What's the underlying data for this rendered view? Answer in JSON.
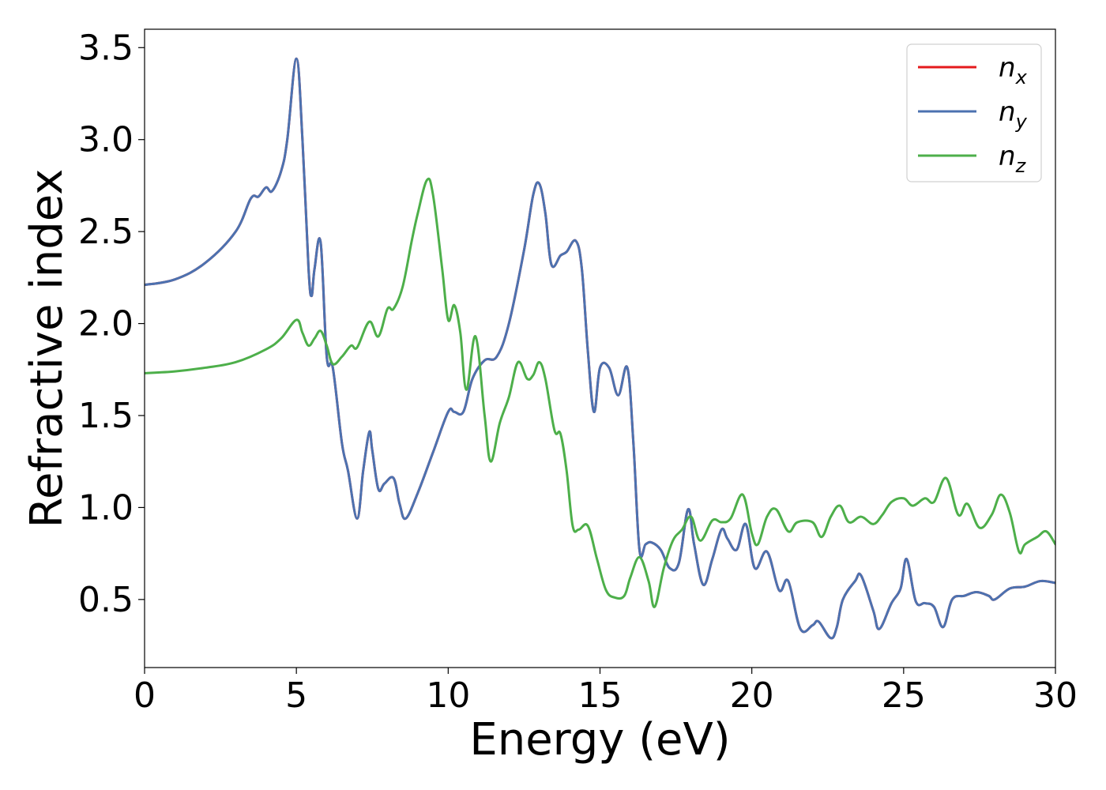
{
  "chart_data": {
    "type": "line",
    "xlabel": "Energy (eV)",
    "ylabel": "Refractive index",
    "xlim": [
      0,
      30
    ],
    "ylim": [
      0.13,
      3.6
    ],
    "xticks": [
      0,
      5,
      10,
      15,
      20,
      25,
      30
    ],
    "yticks": [
      0.5,
      1.0,
      1.5,
      2.0,
      2.5,
      3.0,
      3.5
    ],
    "grid": false,
    "legend_position": "top-right",
    "series": [
      {
        "name": "n_x",
        "label_base": "n",
        "label_sub": "x",
        "color": "#e41a1c",
        "x": [
          0,
          1,
          2,
          3,
          3.5,
          3.75,
          4,
          4.2,
          4.5,
          4.7,
          5.0,
          5.2,
          5.4,
          5.5,
          5.6,
          5.8,
          6.0,
          6.2,
          6.5,
          6.7,
          7.0,
          7.2,
          7.4,
          7.5,
          7.7,
          7.9,
          8.2,
          8.4,
          8.6,
          9.0,
          9.5,
          10.0,
          10.2,
          10.5,
          10.8,
          11.2,
          11.6,
          12.0,
          12.5,
          12.8,
          13.0,
          13.2,
          13.4,
          13.7,
          13.9,
          14.2,
          14.4,
          14.6,
          14.8,
          15.0,
          15.3,
          15.6,
          15.9,
          16.1,
          16.3,
          16.5,
          16.7,
          17.0,
          17.3,
          17.6,
          17.9,
          18.1,
          18.4,
          18.7,
          19.0,
          19.2,
          19.5,
          19.8,
          20.1,
          20.5,
          20.9,
          21.2,
          21.6,
          22.0,
          22.2,
          22.6,
          22.8,
          23.0,
          23.4,
          23.6,
          24.0,
          24.2,
          24.6,
          24.9,
          25.1,
          25.4,
          25.7,
          26.0,
          26.3,
          26.6,
          27.0,
          27.4,
          27.8,
          28.0,
          28.5,
          29.0,
          29.5,
          30.0
        ],
        "y": [
          2.21,
          2.24,
          2.33,
          2.5,
          2.68,
          2.69,
          2.74,
          2.72,
          2.83,
          3.0,
          3.44,
          3.0,
          2.3,
          2.15,
          2.3,
          2.44,
          1.82,
          1.76,
          1.35,
          1.2,
          0.94,
          1.2,
          1.41,
          1.31,
          1.1,
          1.13,
          1.16,
          1.02,
          0.94,
          1.08,
          1.3,
          1.52,
          1.52,
          1.52,
          1.7,
          1.8,
          1.82,
          2.0,
          2.4,
          2.7,
          2.76,
          2.6,
          2.32,
          2.37,
          2.39,
          2.45,
          2.3,
          1.85,
          1.52,
          1.76,
          1.76,
          1.61,
          1.76,
          1.35,
          0.77,
          0.8,
          0.81,
          0.77,
          0.67,
          0.7,
          0.99,
          0.8,
          0.58,
          0.72,
          0.88,
          0.83,
          0.77,
          0.91,
          0.67,
          0.76,
          0.55,
          0.6,
          0.34,
          0.36,
          0.38,
          0.29,
          0.35,
          0.5,
          0.6,
          0.63,
          0.44,
          0.34,
          0.48,
          0.56,
          0.72,
          0.49,
          0.48,
          0.46,
          0.35,
          0.5,
          0.52,
          0.54,
          0.52,
          0.5,
          0.56,
          0.57,
          0.6,
          0.59
        ]
      },
      {
        "name": "n_y",
        "label_base": "n",
        "label_sub": "y",
        "color": "#4c72b0",
        "x": [
          0,
          1,
          2,
          3,
          3.5,
          3.75,
          4,
          4.2,
          4.5,
          4.7,
          5.0,
          5.2,
          5.4,
          5.5,
          5.6,
          5.8,
          6.0,
          6.2,
          6.5,
          6.7,
          7.0,
          7.2,
          7.4,
          7.5,
          7.7,
          7.9,
          8.2,
          8.4,
          8.6,
          9.0,
          9.5,
          10.0,
          10.2,
          10.5,
          10.8,
          11.2,
          11.6,
          12.0,
          12.5,
          12.8,
          13.0,
          13.2,
          13.4,
          13.7,
          13.9,
          14.2,
          14.4,
          14.6,
          14.8,
          15.0,
          15.3,
          15.6,
          15.9,
          16.1,
          16.3,
          16.5,
          16.7,
          17.0,
          17.3,
          17.6,
          17.9,
          18.1,
          18.4,
          18.7,
          19.0,
          19.2,
          19.5,
          19.8,
          20.1,
          20.5,
          20.9,
          21.2,
          21.6,
          22.0,
          22.2,
          22.6,
          22.8,
          23.0,
          23.4,
          23.6,
          24.0,
          24.2,
          24.6,
          24.9,
          25.1,
          25.4,
          25.7,
          26.0,
          26.3,
          26.6,
          27.0,
          27.4,
          27.8,
          28.0,
          28.5,
          29.0,
          29.5,
          30.0
        ],
        "y": [
          2.21,
          2.24,
          2.33,
          2.5,
          2.68,
          2.69,
          2.74,
          2.72,
          2.83,
          3.0,
          3.44,
          3.0,
          2.3,
          2.15,
          2.3,
          2.44,
          1.82,
          1.76,
          1.35,
          1.2,
          0.94,
          1.2,
          1.41,
          1.31,
          1.1,
          1.13,
          1.16,
          1.02,
          0.94,
          1.08,
          1.3,
          1.52,
          1.52,
          1.52,
          1.7,
          1.8,
          1.82,
          2.0,
          2.4,
          2.7,
          2.76,
          2.6,
          2.32,
          2.37,
          2.39,
          2.45,
          2.3,
          1.85,
          1.52,
          1.76,
          1.76,
          1.61,
          1.76,
          1.35,
          0.77,
          0.8,
          0.81,
          0.77,
          0.67,
          0.7,
          0.99,
          0.8,
          0.58,
          0.72,
          0.88,
          0.83,
          0.77,
          0.91,
          0.67,
          0.76,
          0.55,
          0.6,
          0.34,
          0.36,
          0.38,
          0.29,
          0.35,
          0.5,
          0.6,
          0.63,
          0.44,
          0.34,
          0.48,
          0.56,
          0.72,
          0.49,
          0.48,
          0.46,
          0.35,
          0.5,
          0.52,
          0.54,
          0.52,
          0.5,
          0.56,
          0.57,
          0.6,
          0.59
        ]
      },
      {
        "name": "n_z",
        "label_base": "n",
        "label_sub": "z",
        "color": "#4daf4a",
        "x": [
          0,
          1,
          2,
          3,
          4,
          4.5,
          5.0,
          5.2,
          5.4,
          5.6,
          5.8,
          6.0,
          6.2,
          6.5,
          6.8,
          7.0,
          7.4,
          7.7,
          8.0,
          8.2,
          8.5,
          8.8,
          9.0,
          9.3,
          9.5,
          9.8,
          10.0,
          10.2,
          10.4,
          10.6,
          10.9,
          11.2,
          11.4,
          11.7,
          12.0,
          12.3,
          12.6,
          12.8,
          13.0,
          13.2,
          13.5,
          13.7,
          13.9,
          14.1,
          14.3,
          14.6,
          14.9,
          15.2,
          15.5,
          15.8,
          16.0,
          16.3,
          16.6,
          16.8,
          17.1,
          17.4,
          17.7,
          18.0,
          18.3,
          18.7,
          19.0,
          19.3,
          19.7,
          20.0,
          20.2,
          20.5,
          20.8,
          21.2,
          21.5,
          22.0,
          22.3,
          22.6,
          22.9,
          23.2,
          23.6,
          24.0,
          24.3,
          24.6,
          25.0,
          25.3,
          25.7,
          26.0,
          26.4,
          26.8,
          27.1,
          27.5,
          27.9,
          28.2,
          28.5,
          28.8,
          29.0,
          29.4,
          29.7,
          30.0
        ],
        "y": [
          1.73,
          1.74,
          1.76,
          1.79,
          1.86,
          1.92,
          2.02,
          1.95,
          1.88,
          1.92,
          1.96,
          1.88,
          1.78,
          1.82,
          1.88,
          1.87,
          2.01,
          1.93,
          2.08,
          2.08,
          2.2,
          2.45,
          2.6,
          2.78,
          2.7,
          2.3,
          2.02,
          2.1,
          1.95,
          1.64,
          1.93,
          1.5,
          1.25,
          1.46,
          1.6,
          1.79,
          1.7,
          1.72,
          1.79,
          1.7,
          1.42,
          1.4,
          1.2,
          0.9,
          0.88,
          0.9,
          0.72,
          0.55,
          0.51,
          0.52,
          0.62,
          0.73,
          0.6,
          0.46,
          0.67,
          0.82,
          0.88,
          0.95,
          0.82,
          0.93,
          0.92,
          0.94,
          1.07,
          0.86,
          0.8,
          0.95,
          0.99,
          0.87,
          0.92,
          0.92,
          0.84,
          0.95,
          1.01,
          0.92,
          0.95,
          0.91,
          0.96,
          1.03,
          1.05,
          1.01,
          1.05,
          1.03,
          1.16,
          0.96,
          1.02,
          0.89,
          0.96,
          1.07,
          0.97,
          0.76,
          0.8,
          0.84,
          0.87,
          0.8
        ]
      }
    ]
  }
}
